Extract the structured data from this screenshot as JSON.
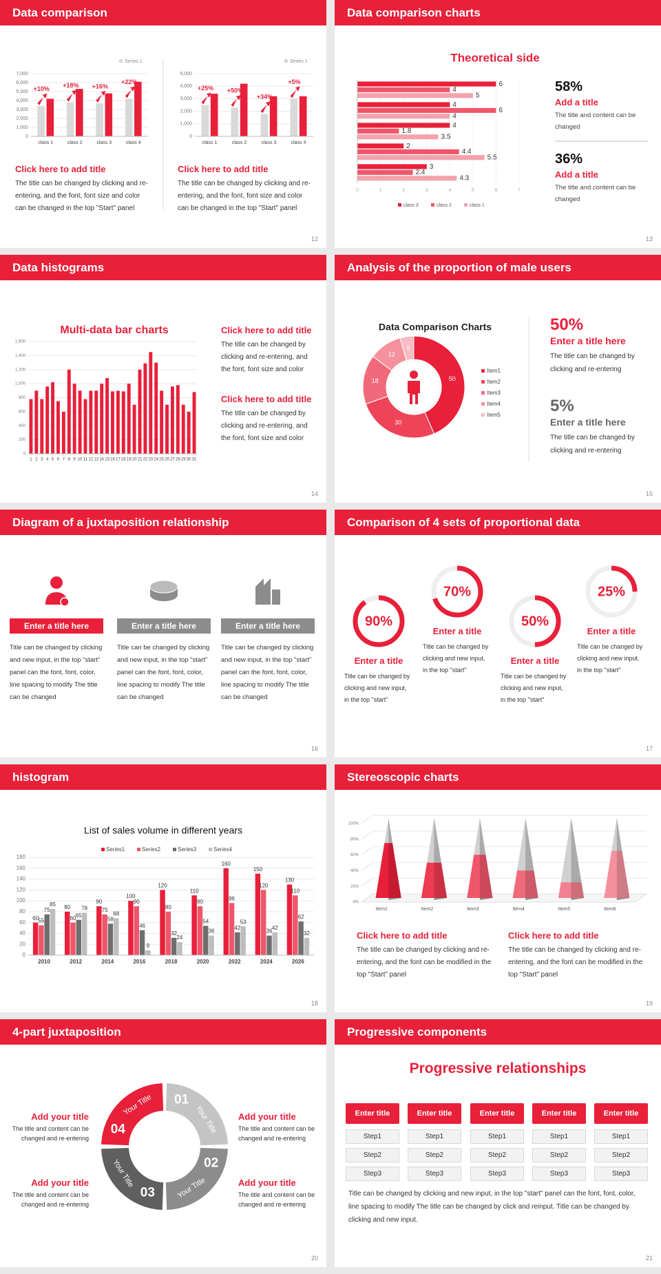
{
  "slides": [
    {
      "title": "Data comparison",
      "page": 12,
      "charts": [
        {
          "type": "bar",
          "categories": [
            "class 1",
            "class 2",
            "class 3",
            "class 4"
          ],
          "series": [
            {
              "name": "Series 1",
              "color": "#d9d9d9",
              "values": [
                3400,
                3800,
                3700,
                4200
              ]
            },
            {
              "color": "#e8203a",
              "values": [
                4200,
                5300,
                4800,
                6100
              ]
            }
          ],
          "ylim": [
            0,
            7000
          ],
          "yticks": [
            0,
            {
              "value": 1000,
              "label": "1,000"
            },
            {
              "value": 2000,
              "label": "2,000"
            },
            {
              "value": 3000,
              "label": "3,000"
            },
            {
              "value": 4000,
              "label": "4,000"
            },
            {
              "value": 5000,
              "label": "5,000"
            },
            {
              "value": 6000,
              "label": "6,000"
            },
            {
              "value": 7000,
              "label": "7,000"
            }
          ],
          "annotations": [
            "+10%",
            "+18%",
            "+16%",
            "+22%"
          ]
        },
        {
          "type": "bar",
          "categories": [
            "class 1",
            "class 2",
            "class 3",
            "class 4"
          ],
          "series": [
            {
              "name": "Series 1",
              "color": "#d9d9d9",
              "values": [
                2500,
                2300,
                1800,
                3000
              ]
            },
            {
              "color": "#e8203a",
              "values": [
                3400,
                4200,
                3200,
                3200
              ]
            }
          ],
          "ylim": [
            0,
            5000
          ],
          "yticks": [
            0,
            {
              "value": 1000,
              "label": "1,000"
            },
            {
              "value": 2000,
              "label": "2,000"
            },
            {
              "value": 3000,
              "label": "3,000"
            },
            {
              "value": 4000,
              "label": "4,000"
            },
            {
              "value": 5000,
              "label": "5,000"
            }
          ],
          "annotations": [
            "+25%",
            "+50%",
            "+34%",
            "+5%"
          ]
        }
      ],
      "blocks": [
        {
          "heading": "Click here to add title",
          "text": "The title can be changed by clicking and re-entering, and the font, font size and color can be changed in the top \"Start\" panel"
        },
        {
          "heading": "Click here to add title",
          "text": "The title can be changed by clicking and re-entering, and the font, font size and color can be changed in the top \"Start\" panel"
        }
      ]
    },
    {
      "title": "Data comparison charts",
      "page": 13,
      "charts": [
        {
          "type": "hbar",
          "title": "Theoretical side",
          "series": [
            {
              "name": "class 3",
              "color": "#e8203a",
              "values": [
                6,
                4,
                4,
                2,
                3
              ]
            },
            {
              "name": "class 2",
              "color": "#f0566a",
              "values": [
                4,
                6,
                1.8,
                4.4,
                2.4
              ]
            },
            {
              "name": "class 1",
              "color": "#f4a3ad",
              "values": [
                5,
                4,
                3.5,
                5.5,
                4.3
              ]
            }
          ],
          "xlim": [
            0,
            7
          ],
          "xticks": [
            0,
            1,
            2,
            3,
            4,
            5,
            6,
            7
          ]
        }
      ],
      "stats": [
        {
          "value": "58%",
          "heading": "Add a title",
          "text": "The title and content can be changed"
        },
        {
          "value": "36%",
          "heading": "Add a title",
          "text": "The title and content can be changed"
        }
      ]
    },
    {
      "title": "Data histograms",
      "page": 14,
      "charts": [
        {
          "type": "bar",
          "title": "Multi-data bar charts",
          "color": "#e8203a",
          "categories": [
            "1",
            "2",
            "3",
            "4",
            "5",
            "6",
            "7",
            "8",
            "9",
            "10",
            "11",
            "12",
            "13",
            "14",
            "15",
            "16",
            "17",
            "18",
            "19",
            "20",
            "21",
            "22",
            "23",
            "24",
            "25",
            "26",
            "27",
            "28",
            "29",
            "30",
            "31"
          ],
          "values": [
            780,
            900,
            780,
            960,
            1020,
            750,
            600,
            1200,
            1000,
            900,
            780,
            900,
            900,
            1000,
            1080,
            890,
            900,
            890,
            1000,
            700,
            1200,
            1290,
            1450,
            1300,
            900,
            700,
            960,
            980,
            700,
            600,
            880
          ],
          "ylim": [
            0,
            1600
          ],
          "yticks": [
            0,
            200,
            400,
            600,
            800,
            {
              "value": 1000,
              "label": "1,000"
            },
            {
              "value": 1200,
              "label": "1,200"
            },
            {
              "value": 1400,
              "label": "1,400"
            },
            {
              "value": 1600,
              "label": "1,600"
            }
          ]
        }
      ],
      "blocks": [
        {
          "heading": "Click here to add title",
          "text": "The title can be changed by clicking and re-entering, and the font, font size and color"
        },
        {
          "heading": "Click here to add title",
          "text": "The title can be changed by clicking and re-entering, and the font, font size and color"
        }
      ]
    },
    {
      "title": "Analysis of the proportion of male users",
      "page": 15,
      "charts": [
        {
          "type": "pie",
          "title": "Data Comparison Charts",
          "categories": [
            "Item1",
            "Item2",
            "Item3",
            "Item4",
            "Item5"
          ],
          "values": [
            50,
            30,
            18,
            12,
            5
          ],
          "colors": [
            "#e8203a",
            "#ee4358",
            "#f06a7b",
            "#f4919d",
            "#f8bcc3"
          ]
        }
      ],
      "stats": [
        {
          "value": "50%",
          "heading": "Enter a title here",
          "text": "The title can be changed by clicking and re-entering"
        },
        {
          "value": "5%",
          "heading": "Enter a title here",
          "text": "The title can be changed by clicking and re-entering"
        }
      ]
    },
    {
      "title": "Diagram of a juxtaposition relationship",
      "page": 16,
      "items": [
        {
          "label": "Enter a title here",
          "color": "#e8203a",
          "text": "Title can be changed by clicking and new input, in the top \"start\" panel can the font, font, color, line spacing to modify The title can be changed"
        },
        {
          "label": "Enter a title here",
          "color": "#8c8c8c",
          "text": "Title can be changed by clicking and new input, in the top \"start\" panel can the font, font, color, line spacing to modify The title can be changed"
        },
        {
          "label": "Enter a title here",
          "color": "#8c8c8c",
          "text": "Title can be changed by clicking and new input, in the top \"start\" panel can the font, font, color, line spacing to modify The title can be changed"
        }
      ]
    },
    {
      "title": "Comparison of 4 sets of proportional data",
      "page": 17,
      "charts": [
        {
          "type": "ring",
          "values": [
            90,
            70,
            50,
            25
          ],
          "value_labels": [
            "90%",
            "70%",
            "50%",
            "25%"
          ],
          "color": "#e8203a"
        }
      ],
      "items": [
        {
          "heading": "Enter a title",
          "text": "Title can be changed by clicking and new input, in the top \"start\""
        },
        {
          "heading": "Enter a title",
          "text": "Title can be changed by clicking and new input, in the top \"start\""
        },
        {
          "heading": "Enter a title",
          "text": "Title can be changed by clicking and new input, in the top \"start\""
        },
        {
          "heading": "Enter a title",
          "text": "Title can be changed by clicking and new input, in the top \"start\""
        }
      ]
    },
    {
      "title": "histogram",
      "page": 18,
      "charts": [
        {
          "type": "bar",
          "title": "List of sales volume in different years",
          "categories": [
            "2010",
            "2012",
            "2014",
            "2016",
            "2018",
            "2020",
            "2022",
            "2024",
            "2026"
          ],
          "series": [
            {
              "name": "Series1",
              "color": "#e8203a",
              "values": [
                60,
                80,
                90,
                100,
                120,
                110,
                160,
                150,
                130
              ]
            },
            {
              "name": "Series2",
              "color": "#f0566a",
              "values": [
                55,
                60,
                75,
                90,
                80,
                90,
                96,
                120,
                110
              ]
            },
            {
              "name": "Series3",
              "color": "#6e6e6e",
              "values": [
                75,
                65,
                58,
                46,
                32,
                54,
                42,
                36,
                62
              ]
            },
            {
              "name": "Series4",
              "color": "#bdbdbd",
              "values": [
                85,
                78,
                68,
                9,
                24,
                36,
                53,
                42,
                32
              ]
            }
          ],
          "ylim": [
            0,
            180
          ],
          "yticks": [
            0,
            20,
            40,
            60,
            80,
            100,
            120,
            140,
            160,
            180
          ]
        }
      ]
    },
    {
      "title": "Stereoscopic charts",
      "page": 19,
      "charts": [
        {
          "type": "cone",
          "categories": [
            "Item1",
            "Item2",
            "Item3",
            "Item4",
            "Item5",
            "Item6"
          ],
          "values": [
            70,
            45,
            55,
            35,
            20,
            60
          ],
          "colors": [
            "#e8203a",
            "#ee3a52",
            "#f0566a",
            "#f06a7b",
            "#f4808f",
            "#f4919d"
          ],
          "ylim": [
            0,
            100
          ],
          "yticks": [
            {
              "value": 0,
              "label": "0%"
            },
            {
              "value": 20,
              "label": "20%"
            },
            {
              "value": 40,
              "label": "40%"
            },
            {
              "value": 60,
              "label": "60%"
            },
            {
              "value": 80,
              "label": "80%"
            },
            {
              "value": 100,
              "label": "100%"
            }
          ]
        }
      ],
      "blocks": [
        {
          "heading": "Click here to add title",
          "text": "The title can be changed by clicking and re-entering, and the font can be modified in the top \"Start\" panel"
        },
        {
          "heading": "Click here to add title",
          "text": "The title can be changed by clicking and re-entering, and the font can be modified in the top \"Start\" panel"
        }
      ]
    },
    {
      "title": "4-part juxtaposition",
      "page": 20,
      "segments": [
        {
          "number": "01",
          "label": "Your Title",
          "color": "#c4c4c4"
        },
        {
          "number": "02",
          "label": "Your Title",
          "color": "#8c8c8c"
        },
        {
          "number": "03",
          "label": "Your Title",
          "color": "#5f5f5f"
        },
        {
          "number": "04",
          "label": "Your Title",
          "color": "#e8203a"
        }
      ],
      "items": [
        {
          "heading": "Add your title",
          "text": "The title and content can be changed and re-entering"
        },
        {
          "heading": "Add your title",
          "text": "The title and content can be changed and re-entering"
        },
        {
          "heading": "Add your title",
          "text": "The title and content can be changed and re-entering"
        },
        {
          "heading": "Add your title",
          "text": "The title and content can be changed and re-entering"
        }
      ]
    },
    {
      "title": "Progressive components",
      "page": 21,
      "heading": "Progressive relationships",
      "columns": [
        {
          "title": "Enter title",
          "steps": [
            "Step1",
            "Step2",
            "Step3"
          ]
        },
        {
          "title": "Enter title",
          "steps": [
            "Step1",
            "Step2",
            "Step3"
          ]
        },
        {
          "title": "Enter title",
          "steps": [
            "Step1",
            "Step2",
            "Step3"
          ]
        },
        {
          "title": "Enter title",
          "steps": [
            "Step1",
            "Step2",
            "Step3"
          ]
        },
        {
          "title": "Enter title",
          "steps": [
            "Step1",
            "Step2",
            "Step3"
          ]
        }
      ],
      "paragraph": "Title can be changed by clicking and new input, in the top \"start\" panel can the font, font, color, line spacing to modify The title can be changed by click and reinput. Title can be changed by clicking and new input."
    }
  ]
}
